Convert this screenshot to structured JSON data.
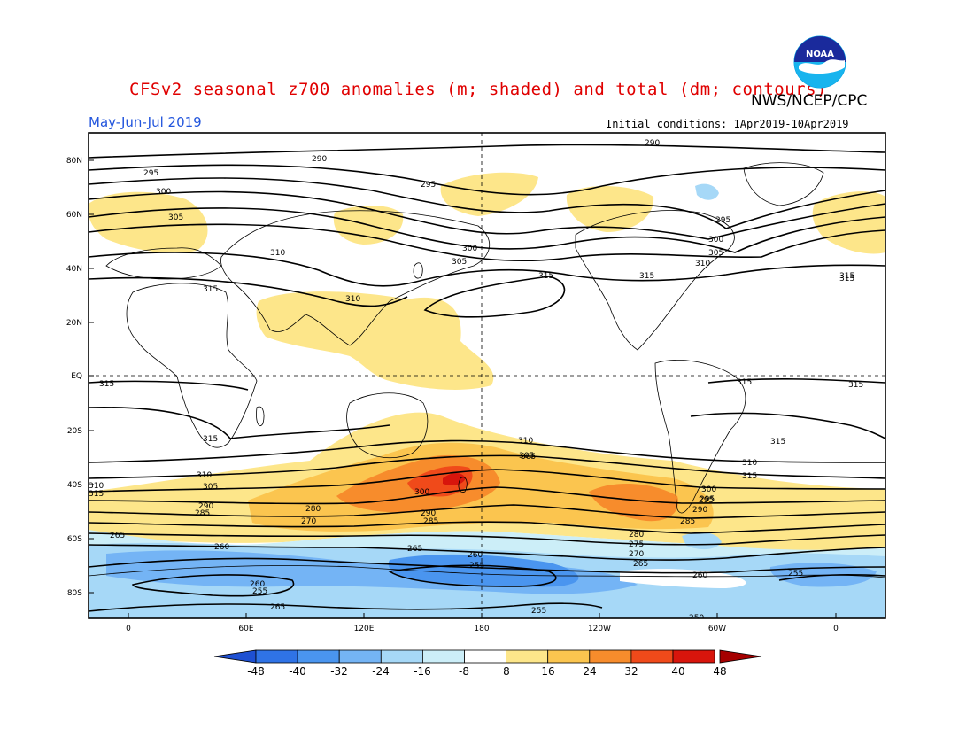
{
  "title": "CFSv2 seasonal z700 anomalies (m; shaded) and total (dm; contours)",
  "agency": "NWS/NCEP/CPC",
  "period": "May-Jun-Jul 2019",
  "initial_conditions": "Initial conditions: 1Apr2019-10Apr2019",
  "logo_text": "NOAA",
  "lat_labels": [
    "80N",
    "60N",
    "40N",
    "20N",
    "EQ",
    "20S",
    "40S",
    "60S",
    "80S"
  ],
  "lon_labels": [
    "0",
    "60E",
    "120E",
    "180",
    "120W",
    "60W",
    "0"
  ],
  "contour_labels": [
    "290",
    "290",
    "295",
    "295",
    "300",
    "300",
    "305",
    "305",
    "310",
    "310",
    "310",
    "310",
    "315",
    "315",
    "315",
    "315",
    "315",
    "315",
    "315",
    "315",
    "315",
    "315",
    "305",
    "305",
    "300",
    "300",
    "295",
    "295",
    "290",
    "290",
    "285",
    "285",
    "280",
    "280",
    "275",
    "270",
    "270",
    "265",
    "265",
    "265",
    "260",
    "260",
    "260",
    "255",
    "255",
    "255",
    "265",
    "310",
    "310",
    "305",
    "305",
    "310",
    "315",
    "315",
    "300",
    "295",
    "290",
    "285",
    "260",
    "255",
    "250"
  ],
  "colorbar": {
    "labels": [
      "-48",
      "-40",
      "-32",
      "-24",
      "-16",
      "-8",
      "8",
      "16",
      "24",
      "32",
      "40",
      "48"
    ],
    "colors": [
      "#1e50d2",
      "#2f73e6",
      "#4a95ef",
      "#74b4f5",
      "#a6d8f7",
      "#cceef8",
      "#ffffff",
      "#fde68a",
      "#fbc54f",
      "#f78c2c",
      "#f04a1a",
      "#d8150c",
      "#a50000"
    ]
  },
  "chart_data": {
    "type": "map",
    "variable": "z700",
    "anomaly_units": "m",
    "total_units": "dm",
    "anomaly_levels": [
      -48,
      -40,
      -32,
      -24,
      -16,
      -8,
      8,
      16,
      24,
      32,
      40,
      48
    ],
    "contour_levels": [
      250,
      255,
      260,
      265,
      270,
      275,
      280,
      285,
      290,
      295,
      300,
      305,
      310,
      315
    ],
    "lat_ticks": [
      "80N",
      "60N",
      "40N",
      "20N",
      "EQ",
      "20S",
      "40S",
      "60S",
      "80S"
    ],
    "lon_ticks": [
      "0",
      "60E",
      "120E",
      "180",
      "120W",
      "60W",
      "0"
    ]
  }
}
